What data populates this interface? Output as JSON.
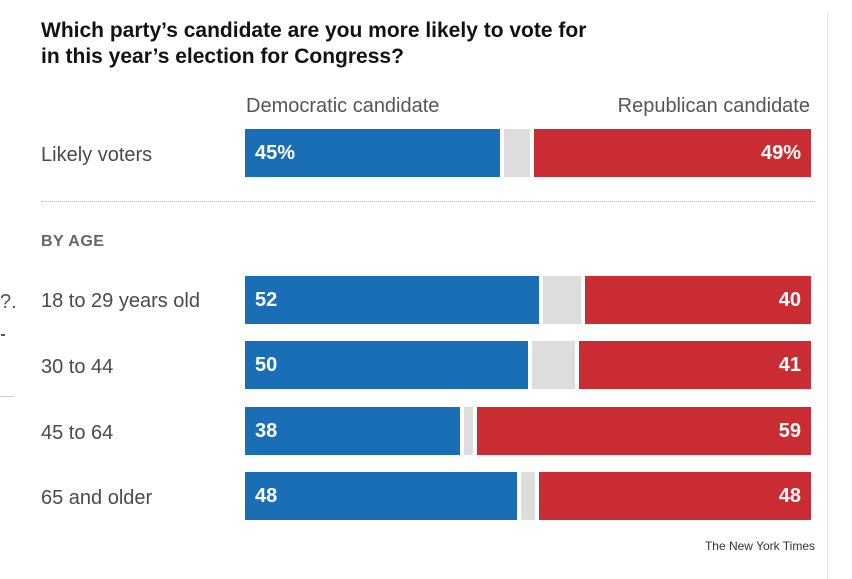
{
  "title": "Which party’s candidate are you more likely to vote for in this year’s election for Congress?",
  "source": "The New York Times",
  "edge_glyph": "?.",
  "colors": {
    "democratic": "#1a6eb5",
    "republican": "#c92d33",
    "other": "#dddddd"
  },
  "chart_data": {
    "type": "bar",
    "orientation": "horizontal-stacked",
    "title": "Which party’s candidate are you more likely to vote for in this year’s election for Congress?",
    "series_labels": {
      "democratic": "Democratic candidate",
      "republican": "Republican candidate"
    },
    "section_label": "BY AGE",
    "xlim": [
      0,
      100
    ],
    "rows": [
      {
        "label": "Likely voters",
        "dem": 45,
        "rep": 49,
        "dem_label": "45%",
        "rep_label": "49%"
      },
      {
        "label": "18 to 29 years old",
        "dem": 52,
        "rep": 40,
        "dem_label": "52",
        "rep_label": "40"
      },
      {
        "label": "30 to 44",
        "dem": 50,
        "rep": 41,
        "dem_label": "50",
        "rep_label": "41"
      },
      {
        "label": "45 to 64",
        "dem": 38,
        "rep": 59,
        "dem_label": "38",
        "rep_label": "59"
      },
      {
        "label": "65 and older",
        "dem": 48,
        "rep": 48,
        "dem_label": "48",
        "rep_label": "48"
      }
    ]
  }
}
